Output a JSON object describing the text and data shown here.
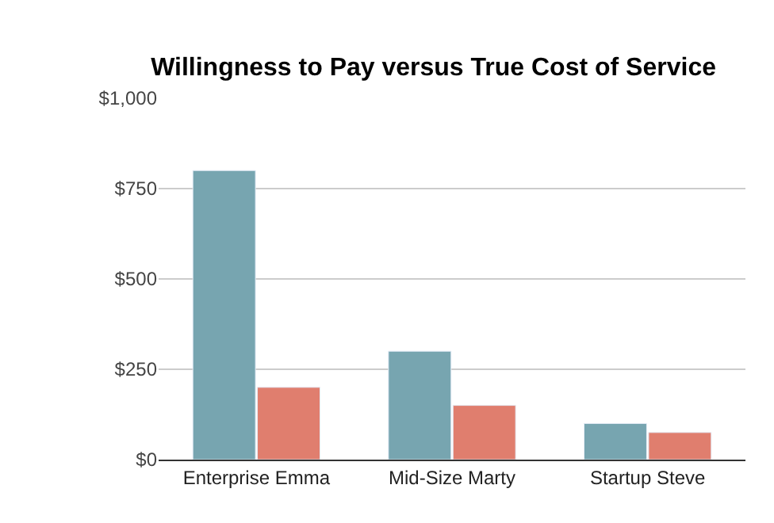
{
  "chart_data": {
    "type": "bar",
    "title": "Willingness to Pay versus True Cost of Service",
    "categories": [
      "Enterprise Emma",
      "Mid-Size Marty",
      "Startup Steve"
    ],
    "series": [
      {
        "color": "#77a5b0",
        "values": [
          800,
          300,
          100
        ]
      },
      {
        "color": "#e07e6e",
        "values": [
          200,
          150,
          75
        ]
      }
    ],
    "ylim": [
      0,
      1000
    ],
    "yticks": [
      {
        "value": 0,
        "label": "$0"
      },
      {
        "value": 250,
        "label": "$250"
      },
      {
        "value": 500,
        "label": "$500"
      },
      {
        "value": 750,
        "label": "$750"
      },
      {
        "value": 1000,
        "label": "$1,000"
      }
    ],
    "grid": "y"
  }
}
